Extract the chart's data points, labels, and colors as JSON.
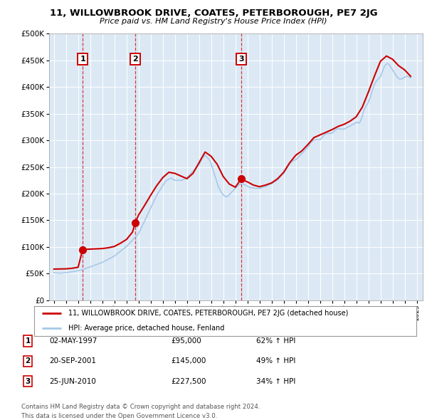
{
  "title": "11, WILLOWBROOK DRIVE, COATES, PETERBOROUGH, PE7 2JG",
  "subtitle": "Price paid vs. HM Land Registry's House Price Index (HPI)",
  "ylim": [
    0,
    500000
  ],
  "yticks": [
    0,
    50000,
    100000,
    150000,
    200000,
    250000,
    300000,
    350000,
    400000,
    450000,
    500000
  ],
  "ytick_labels": [
    "£0",
    "£50K",
    "£100K",
    "£150K",
    "£200K",
    "£250K",
    "£300K",
    "£350K",
    "£400K",
    "£450K",
    "£500K"
  ],
  "xlim_start": 1994.6,
  "xlim_end": 2025.5,
  "plot_bg_color": "#dce9f5",
  "hpi_line_color": "#a8c8e8",
  "price_line_color": "#cc0000",
  "sale_marker_color": "#cc0000",
  "sale_marker_size": 7,
  "transaction_label_border": "#cc0000",
  "transactions": [
    {
      "num": 1,
      "date_str": "02-MAY-1997",
      "year": 1997.37,
      "price": 95000,
      "pct": "62%",
      "dir": "↑"
    },
    {
      "num": 2,
      "date_str": "20-SEP-2001",
      "year": 2001.72,
      "price": 145000,
      "pct": "49%",
      "dir": "↑"
    },
    {
      "num": 3,
      "date_str": "25-JUN-2010",
      "year": 2010.48,
      "price": 227500,
      "pct": "34%",
      "dir": "↑"
    }
  ],
  "legend_property_label": "11, WILLOWBROOK DRIVE, COATES, PETERBOROUGH, PE7 2JG (detached house)",
  "legend_hpi_label": "HPI: Average price, detached house, Fenland",
  "footer_line1": "Contains HM Land Registry data © Crown copyright and database right 2024.",
  "footer_line2": "This data is licensed under the Open Government Licence v3.0.",
  "hpi_data": [
    [
      1995.0,
      52000
    ],
    [
      1995.08,
      51800
    ],
    [
      1995.17,
      51600
    ],
    [
      1995.25,
      51400
    ],
    [
      1995.33,
      51200
    ],
    [
      1995.42,
      51000
    ],
    [
      1995.5,
      50800
    ],
    [
      1995.58,
      50900
    ],
    [
      1995.67,
      51000
    ],
    [
      1995.75,
      51200
    ],
    [
      1995.83,
      51400
    ],
    [
      1995.92,
      51600
    ],
    [
      1996.0,
      51800
    ],
    [
      1996.08,
      52000
    ],
    [
      1996.17,
      52300
    ],
    [
      1996.25,
      52600
    ],
    [
      1996.33,
      52900
    ],
    [
      1996.42,
      53200
    ],
    [
      1996.5,
      53500
    ],
    [
      1996.58,
      53800
    ],
    [
      1996.67,
      54100
    ],
    [
      1996.75,
      54400
    ],
    [
      1996.83,
      54700
    ],
    [
      1996.92,
      55000
    ],
    [
      1997.0,
      55300
    ],
    [
      1997.08,
      55800
    ],
    [
      1997.17,
      56300
    ],
    [
      1997.25,
      56800
    ],
    [
      1997.33,
      57300
    ],
    [
      1997.42,
      57800
    ],
    [
      1997.5,
      58500
    ],
    [
      1997.58,
      59200
    ],
    [
      1997.67,
      59900
    ],
    [
      1997.75,
      60600
    ],
    [
      1997.83,
      61300
    ],
    [
      1997.92,
      62000
    ],
    [
      1998.0,
      62700
    ],
    [
      1998.08,
      63400
    ],
    [
      1998.17,
      64100
    ],
    [
      1998.25,
      64800
    ],
    [
      1998.33,
      65500
    ],
    [
      1998.42,
      66200
    ],
    [
      1998.5,
      66900
    ],
    [
      1998.58,
      67600
    ],
    [
      1998.67,
      68300
    ],
    [
      1998.75,
      69000
    ],
    [
      1998.83,
      69700
    ],
    [
      1998.92,
      70400
    ],
    [
      1999.0,
      71100
    ],
    [
      1999.08,
      72000
    ],
    [
      1999.17,
      73000
    ],
    [
      1999.25,
      74000
    ],
    [
      1999.33,
      75000
    ],
    [
      1999.42,
      76000
    ],
    [
      1999.5,
      77000
    ],
    [
      1999.58,
      78000
    ],
    [
      1999.67,
      79000
    ],
    [
      1999.75,
      80000
    ],
    [
      1999.83,
      81000
    ],
    [
      1999.92,
      82000
    ],
    [
      2000.0,
      83000
    ],
    [
      2000.08,
      84500
    ],
    [
      2000.17,
      86000
    ],
    [
      2000.25,
      87500
    ],
    [
      2000.33,
      89000
    ],
    [
      2000.42,
      90500
    ],
    [
      2000.5,
      92000
    ],
    [
      2000.58,
      93500
    ],
    [
      2000.67,
      95000
    ],
    [
      2000.75,
      96500
    ],
    [
      2000.83,
      98000
    ],
    [
      2000.92,
      99500
    ],
    [
      2001.0,
      101000
    ],
    [
      2001.08,
      103000
    ],
    [
      2001.17,
      105000
    ],
    [
      2001.25,
      107000
    ],
    [
      2001.33,
      109000
    ],
    [
      2001.42,
      111000
    ],
    [
      2001.5,
      113000
    ],
    [
      2001.58,
      115000
    ],
    [
      2001.67,
      117000
    ],
    [
      2001.75,
      119000
    ],
    [
      2001.83,
      121000
    ],
    [
      2001.92,
      123000
    ],
    [
      2002.0,
      125000
    ],
    [
      2002.08,
      129000
    ],
    [
      2002.17,
      133000
    ],
    [
      2002.25,
      137000
    ],
    [
      2002.33,
      141000
    ],
    [
      2002.42,
      145000
    ],
    [
      2002.5,
      149000
    ],
    [
      2002.58,
      153000
    ],
    [
      2002.67,
      157000
    ],
    [
      2002.75,
      161000
    ],
    [
      2002.83,
      165000
    ],
    [
      2002.92,
      169000
    ],
    [
      2003.0,
      173000
    ],
    [
      2003.08,
      177000
    ],
    [
      2003.17,
      181000
    ],
    [
      2003.25,
      185000
    ],
    [
      2003.33,
      189000
    ],
    [
      2003.42,
      193000
    ],
    [
      2003.5,
      197000
    ],
    [
      2003.58,
      200000
    ],
    [
      2003.67,
      203000
    ],
    [
      2003.75,
      206000
    ],
    [
      2003.83,
      209000
    ],
    [
      2003.92,
      212000
    ],
    [
      2004.0,
      215000
    ],
    [
      2004.08,
      218000
    ],
    [
      2004.17,
      221000
    ],
    [
      2004.25,
      224000
    ],
    [
      2004.33,
      225000
    ],
    [
      2004.42,
      226000
    ],
    [
      2004.5,
      227000
    ],
    [
      2004.58,
      228000
    ],
    [
      2004.67,
      229000
    ],
    [
      2004.75,
      228000
    ],
    [
      2004.83,
      227000
    ],
    [
      2004.92,
      226000
    ],
    [
      2005.0,
      225000
    ],
    [
      2005.08,
      225000
    ],
    [
      2005.17,
      225000
    ],
    [
      2005.25,
      225000
    ],
    [
      2005.33,
      225000
    ],
    [
      2005.42,
      225000
    ],
    [
      2005.5,
      225000
    ],
    [
      2005.58,
      225000
    ],
    [
      2005.67,
      226000
    ],
    [
      2005.75,
      227000
    ],
    [
      2005.83,
      228000
    ],
    [
      2005.92,
      229000
    ],
    [
      2006.0,
      230000
    ],
    [
      2006.08,
      232000
    ],
    [
      2006.17,
      234000
    ],
    [
      2006.25,
      236000
    ],
    [
      2006.33,
      238000
    ],
    [
      2006.42,
      240000
    ],
    [
      2006.5,
      242000
    ],
    [
      2006.58,
      244000
    ],
    [
      2006.67,
      246000
    ],
    [
      2006.75,
      248000
    ],
    [
      2006.83,
      250000
    ],
    [
      2006.92,
      252000
    ],
    [
      2007.0,
      254000
    ],
    [
      2007.08,
      258000
    ],
    [
      2007.17,
      262000
    ],
    [
      2007.25,
      266000
    ],
    [
      2007.33,
      268000
    ],
    [
      2007.42,
      270000
    ],
    [
      2007.5,
      272000
    ],
    [
      2007.58,
      270000
    ],
    [
      2007.67,
      268000
    ],
    [
      2007.75,
      266000
    ],
    [
      2007.83,
      264000
    ],
    [
      2007.92,
      260000
    ],
    [
      2008.0,
      256000
    ],
    [
      2008.08,
      250000
    ],
    [
      2008.17,
      244000
    ],
    [
      2008.25,
      238000
    ],
    [
      2008.33,
      232000
    ],
    [
      2008.42,
      226000
    ],
    [
      2008.5,
      220000
    ],
    [
      2008.58,
      214000
    ],
    [
      2008.67,
      210000
    ],
    [
      2008.75,
      206000
    ],
    [
      2008.83,
      203000
    ],
    [
      2008.92,
      200000
    ],
    [
      2009.0,
      198000
    ],
    [
      2009.08,
      196000
    ],
    [
      2009.17,
      195000
    ],
    [
      2009.25,
      194000
    ],
    [
      2009.33,
      195000
    ],
    [
      2009.42,
      196000
    ],
    [
      2009.5,
      198000
    ],
    [
      2009.58,
      200000
    ],
    [
      2009.67,
      202000
    ],
    [
      2009.75,
      204000
    ],
    [
      2009.83,
      206000
    ],
    [
      2009.92,
      208000
    ],
    [
      2010.0,
      210000
    ],
    [
      2010.08,
      212000
    ],
    [
      2010.17,
      214000
    ],
    [
      2010.25,
      216000
    ],
    [
      2010.33,
      217000
    ],
    [
      2010.42,
      218000
    ],
    [
      2010.5,
      218000
    ],
    [
      2010.58,
      218000
    ],
    [
      2010.67,
      218000
    ],
    [
      2010.75,
      217000
    ],
    [
      2010.83,
      216000
    ],
    [
      2010.92,
      215000
    ],
    [
      2011.0,
      214000
    ],
    [
      2011.08,
      213000
    ],
    [
      2011.17,
      212000
    ],
    [
      2011.25,
      211000
    ],
    [
      2011.33,
      211000
    ],
    [
      2011.42,
      211000
    ],
    [
      2011.5,
      211000
    ],
    [
      2011.58,
      210000
    ],
    [
      2011.67,
      210000
    ],
    [
      2011.75,
      210000
    ],
    [
      2011.83,
      210000
    ],
    [
      2011.92,
      210000
    ],
    [
      2012.0,
      210000
    ],
    [
      2012.08,
      210000
    ],
    [
      2012.17,
      211000
    ],
    [
      2012.25,
      212000
    ],
    [
      2012.33,
      212000
    ],
    [
      2012.42,
      213000
    ],
    [
      2012.5,
      213000
    ],
    [
      2012.58,
      214000
    ],
    [
      2012.67,
      215000
    ],
    [
      2012.75,
      216000
    ],
    [
      2012.83,
      217000
    ],
    [
      2012.92,
      218000
    ],
    [
      2013.0,
      219000
    ],
    [
      2013.08,
      220000
    ],
    [
      2013.17,
      221000
    ],
    [
      2013.25,
      222000
    ],
    [
      2013.33,
      223000
    ],
    [
      2013.42,
      224000
    ],
    [
      2013.5,
      226000
    ],
    [
      2013.58,
      228000
    ],
    [
      2013.67,
      230000
    ],
    [
      2013.75,
      232000
    ],
    [
      2013.83,
      234000
    ],
    [
      2013.92,
      236000
    ],
    [
      2014.0,
      238000
    ],
    [
      2014.08,
      241000
    ],
    [
      2014.17,
      244000
    ],
    [
      2014.25,
      247000
    ],
    [
      2014.33,
      250000
    ],
    [
      2014.42,
      253000
    ],
    [
      2014.5,
      256000
    ],
    [
      2014.58,
      258000
    ],
    [
      2014.67,
      260000
    ],
    [
      2014.75,
      261000
    ],
    [
      2014.83,
      262000
    ],
    [
      2014.92,
      263000
    ],
    [
      2015.0,
      264000
    ],
    [
      2015.08,
      265000
    ],
    [
      2015.17,
      267000
    ],
    [
      2015.25,
      269000
    ],
    [
      2015.33,
      271000
    ],
    [
      2015.42,
      273000
    ],
    [
      2015.5,
      275000
    ],
    [
      2015.58,
      277000
    ],
    [
      2015.67,
      279000
    ],
    [
      2015.75,
      281000
    ],
    [
      2015.83,
      283000
    ],
    [
      2015.92,
      285000
    ],
    [
      2016.0,
      287000
    ],
    [
      2016.08,
      290000
    ],
    [
      2016.17,
      293000
    ],
    [
      2016.25,
      296000
    ],
    [
      2016.33,
      298000
    ],
    [
      2016.42,
      299000
    ],
    [
      2016.5,
      300000
    ],
    [
      2016.58,
      301000
    ],
    [
      2016.67,
      301000
    ],
    [
      2016.75,
      301000
    ],
    [
      2016.83,
      301000
    ],
    [
      2016.92,
      301000
    ],
    [
      2017.0,
      301000
    ],
    [
      2017.08,
      303000
    ],
    [
      2017.17,
      305000
    ],
    [
      2017.25,
      307000
    ],
    [
      2017.33,
      309000
    ],
    [
      2017.42,
      311000
    ],
    [
      2017.5,
      312000
    ],
    [
      2017.58,
      313000
    ],
    [
      2017.67,
      313000
    ],
    [
      2017.75,
      313000
    ],
    [
      2017.83,
      313000
    ],
    [
      2017.92,
      313000
    ],
    [
      2018.0,
      313000
    ],
    [
      2018.08,
      315000
    ],
    [
      2018.17,
      317000
    ],
    [
      2018.25,
      319000
    ],
    [
      2018.33,
      320000
    ],
    [
      2018.42,
      321000
    ],
    [
      2018.5,
      322000
    ],
    [
      2018.58,
      322000
    ],
    [
      2018.67,
      321000
    ],
    [
      2018.75,
      321000
    ],
    [
      2018.83,
      321000
    ],
    [
      2018.92,
      321000
    ],
    [
      2019.0,
      321000
    ],
    [
      2019.08,
      322000
    ],
    [
      2019.17,
      323000
    ],
    [
      2019.25,
      324000
    ],
    [
      2019.33,
      325000
    ],
    [
      2019.42,
      326000
    ],
    [
      2019.5,
      327000
    ],
    [
      2019.58,
      328000
    ],
    [
      2019.67,
      329000
    ],
    [
      2019.75,
      330000
    ],
    [
      2019.83,
      331000
    ],
    [
      2019.92,
      332000
    ],
    [
      2020.0,
      333000
    ],
    [
      2020.08,
      334000
    ],
    [
      2020.17,
      333000
    ],
    [
      2020.25,
      332000
    ],
    [
      2020.33,
      335000
    ],
    [
      2020.42,
      340000
    ],
    [
      2020.5,
      345000
    ],
    [
      2020.58,
      352000
    ],
    [
      2020.67,
      358000
    ],
    [
      2020.75,
      362000
    ],
    [
      2020.83,
      365000
    ],
    [
      2020.92,
      368000
    ],
    [
      2021.0,
      371000
    ],
    [
      2021.08,
      376000
    ],
    [
      2021.17,
      381000
    ],
    [
      2021.25,
      387000
    ],
    [
      2021.33,
      393000
    ],
    [
      2021.42,
      399000
    ],
    [
      2021.5,
      404000
    ],
    [
      2021.58,
      408000
    ],
    [
      2021.67,
      411000
    ],
    [
      2021.75,
      413000
    ],
    [
      2021.83,
      415000
    ],
    [
      2021.92,
      417000
    ],
    [
      2022.0,
      419000
    ],
    [
      2022.08,
      424000
    ],
    [
      2022.17,
      429000
    ],
    [
      2022.25,
      434000
    ],
    [
      2022.33,
      438000
    ],
    [
      2022.42,
      441000
    ],
    [
      2022.5,
      443000
    ],
    [
      2022.58,
      444000
    ],
    [
      2022.67,
      443000
    ],
    [
      2022.75,
      441000
    ],
    [
      2022.83,
      438000
    ],
    [
      2022.92,
      435000
    ],
    [
      2023.0,
      432000
    ],
    [
      2023.08,
      429000
    ],
    [
      2023.17,
      426000
    ],
    [
      2023.25,
      423000
    ],
    [
      2023.33,
      420000
    ],
    [
      2023.42,
      418000
    ],
    [
      2023.5,
      416000
    ],
    [
      2023.58,
      415000
    ],
    [
      2023.67,
      415000
    ],
    [
      2023.75,
      415000
    ],
    [
      2023.83,
      416000
    ],
    [
      2023.92,
      417000
    ],
    [
      2024.0,
      418000
    ],
    [
      2024.08,
      419000
    ],
    [
      2024.17,
      420000
    ],
    [
      2024.25,
      420000
    ],
    [
      2024.33,
      419000
    ],
    [
      2024.42,
      418000
    ],
    [
      2024.5,
      417000
    ]
  ],
  "price_line_data": [
    [
      1995.0,
      58500
    ],
    [
      1995.5,
      58800
    ],
    [
      1996.0,
      59000
    ],
    [
      1996.5,
      60000
    ],
    [
      1997.0,
      62000
    ],
    [
      1997.37,
      95000
    ],
    [
      1997.5,
      95200
    ],
    [
      1997.67,
      95500
    ],
    [
      1998.0,
      96000
    ],
    [
      1998.5,
      96500
    ],
    [
      1999.0,
      97000
    ],
    [
      1999.5,
      98500
    ],
    [
      2000.0,
      101000
    ],
    [
      2000.5,
      107000
    ],
    [
      2001.0,
      114000
    ],
    [
      2001.5,
      128000
    ],
    [
      2001.72,
      145000
    ],
    [
      2002.0,
      160000
    ],
    [
      2002.5,
      178000
    ],
    [
      2003.0,
      197000
    ],
    [
      2003.5,
      215000
    ],
    [
      2004.0,
      230000
    ],
    [
      2004.5,
      240000
    ],
    [
      2005.0,
      238000
    ],
    [
      2005.5,
      233000
    ],
    [
      2006.0,
      228000
    ],
    [
      2006.5,
      238000
    ],
    [
      2007.0,
      258000
    ],
    [
      2007.5,
      278000
    ],
    [
      2008.0,
      270000
    ],
    [
      2008.5,
      255000
    ],
    [
      2009.0,
      232000
    ],
    [
      2009.5,
      218000
    ],
    [
      2010.0,
      212000
    ],
    [
      2010.48,
      227500
    ],
    [
      2010.5,
      227000
    ],
    [
      2011.0,
      222000
    ],
    [
      2011.5,
      216000
    ],
    [
      2012.0,
      213000
    ],
    [
      2012.5,
      216000
    ],
    [
      2013.0,
      220000
    ],
    [
      2013.5,
      228000
    ],
    [
      2014.0,
      240000
    ],
    [
      2014.5,
      258000
    ],
    [
      2015.0,
      272000
    ],
    [
      2015.5,
      280000
    ],
    [
      2016.0,
      292000
    ],
    [
      2016.5,
      305000
    ],
    [
      2017.0,
      310000
    ],
    [
      2017.5,
      315000
    ],
    [
      2018.0,
      320000
    ],
    [
      2018.5,
      326000
    ],
    [
      2019.0,
      330000
    ],
    [
      2019.5,
      336000
    ],
    [
      2020.0,
      344000
    ],
    [
      2020.5,
      362000
    ],
    [
      2021.0,
      390000
    ],
    [
      2021.5,
      420000
    ],
    [
      2022.0,
      448000
    ],
    [
      2022.5,
      458000
    ],
    [
      2023.0,
      452000
    ],
    [
      2023.5,
      440000
    ],
    [
      2024.0,
      432000
    ],
    [
      2024.5,
      420000
    ]
  ]
}
